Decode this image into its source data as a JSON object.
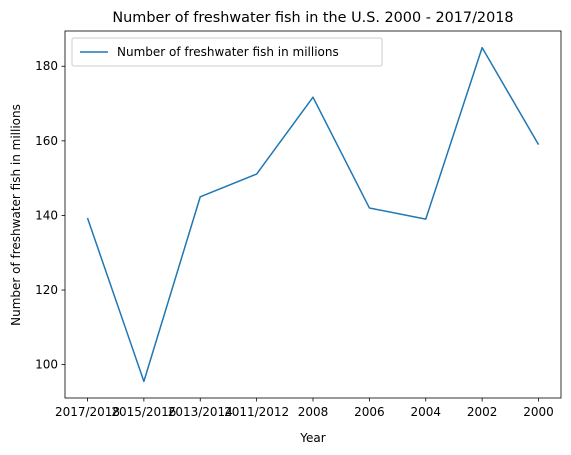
{
  "chart_data": {
    "type": "line",
    "title": "Number of freshwater fish in the U.S. 2000 - 2017/2018",
    "xlabel": "Year",
    "ylabel": "Number of freshwater fish in millions",
    "categories": [
      "2017/2018",
      "2015/2016",
      "2013/2014",
      "2011/2012",
      "2008",
      "2006",
      "2004",
      "2002",
      "2000"
    ],
    "series": [
      {
        "name": "Number of freshwater fish in millions",
        "values": [
          139.3,
          95.5,
          145.0,
          151.1,
          171.7,
          142.0,
          139.0,
          185.0,
          159.0
        ],
        "color": "#1f77b4"
      }
    ],
    "yticks": [
      100,
      120,
      140,
      160,
      180
    ],
    "ylim": [
      91.05,
      189.45
    ],
    "grid": false,
    "legend_position": "top-left"
  }
}
